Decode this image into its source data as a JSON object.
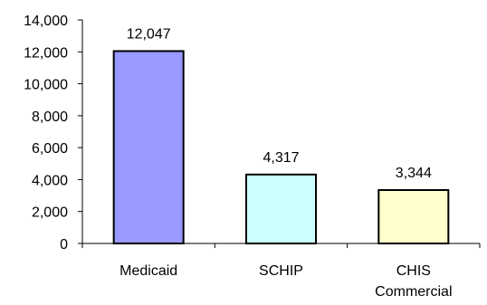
{
  "chart_data": {
    "type": "bar",
    "categories": [
      "Medicaid",
      "SCHIP",
      "CHIS Commercial"
    ],
    "category_lines": [
      [
        "Medicaid"
      ],
      [
        "SCHIP"
      ],
      [
        "CHIS",
        "Commercial"
      ]
    ],
    "values": [
      12047,
      4317,
      3344
    ],
    "data_labels": [
      "12,047",
      "4,317",
      "3,344"
    ],
    "bar_colors": [
      "#9999FF",
      "#CCFFFF",
      "#FFFFCC"
    ],
    "bar_outline": "#000000",
    "title": "",
    "xlabel": "",
    "ylabel": "",
    "ylim": [
      0,
      14000
    ],
    "yticks": [
      0,
      2000,
      4000,
      6000,
      8000,
      10000,
      12000,
      14000
    ],
    "ytick_labels": [
      "0",
      "2,000",
      "4,000",
      "6,000",
      "8,000",
      "10,000",
      "12,000",
      "14,000"
    ],
    "grid": false,
    "legend": "none"
  }
}
